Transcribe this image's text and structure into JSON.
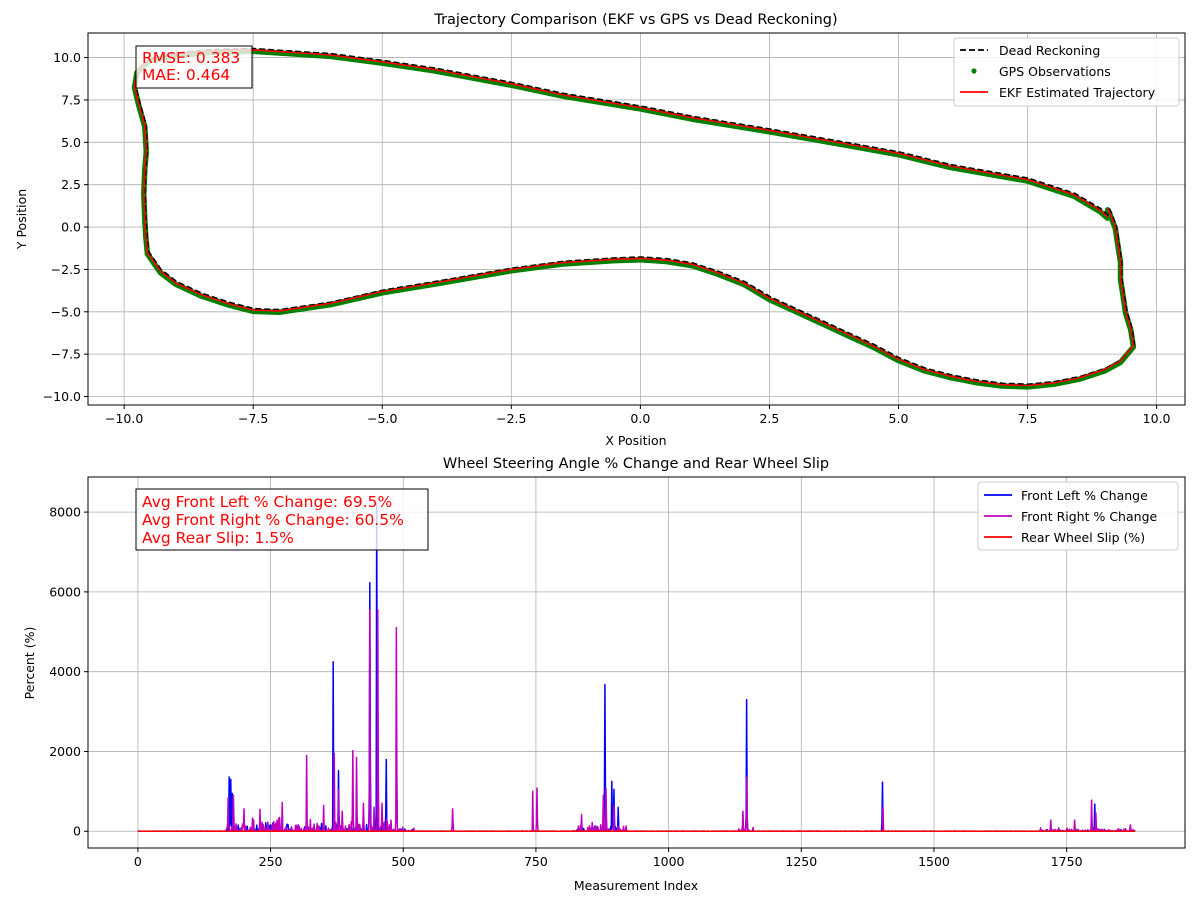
{
  "chart_data": [
    {
      "type": "line",
      "title": "Trajectory Comparison (EKF vs GPS vs Dead Reckoning)",
      "xlabel": "X Position",
      "ylabel": "Y Position",
      "xlim": [
        -10.7,
        10.55
      ],
      "ylim": [
        -10.5,
        11.45
      ],
      "xticks": [
        -10.0,
        -7.5,
        -5.0,
        -2.5,
        0.0,
        2.5,
        5.0,
        7.5,
        10.0
      ],
      "yticks": [
        -10.0,
        -7.5,
        -5.0,
        -2.5,
        0.0,
        2.5,
        5.0,
        7.5,
        10.0
      ],
      "grid": true,
      "legend_position": "top-right",
      "annotation": [
        "RMSE: 0.383",
        "MAE: 0.464"
      ],
      "path": [
        [
          9.05,
          0.6
        ],
        [
          8.9,
          1.0
        ],
        [
          8.4,
          1.9
        ],
        [
          7.5,
          2.8
        ],
        [
          6.0,
          3.6
        ],
        [
          5.0,
          4.35
        ],
        [
          4.0,
          4.9
        ],
        [
          2.5,
          5.7
        ],
        [
          1.0,
          6.45
        ],
        [
          0.0,
          7.05
        ],
        [
          -1.5,
          7.8
        ],
        [
          -2.5,
          8.45
        ],
        [
          -4.0,
          9.3
        ],
        [
          -5.0,
          9.75
        ],
        [
          -6.0,
          10.15
        ],
        [
          -7.0,
          10.35
        ],
        [
          -7.5,
          10.45
        ],
        [
          -8.3,
          10.4
        ],
        [
          -9.0,
          10.2
        ],
        [
          -9.5,
          9.9
        ],
        [
          -9.75,
          9.2
        ],
        [
          -9.8,
          8.3
        ],
        [
          -9.72,
          7.3
        ],
        [
          -9.6,
          6.0
        ],
        [
          -9.57,
          4.5
        ],
        [
          -9.6,
          3.5
        ],
        [
          -9.62,
          2.0
        ],
        [
          -9.6,
          0.5
        ],
        [
          -9.58,
          -0.5
        ],
        [
          -9.55,
          -1.5
        ],
        [
          -9.3,
          -2.6
        ],
        [
          -9.0,
          -3.3
        ],
        [
          -8.5,
          -4.0
        ],
        [
          -8.0,
          -4.5
        ],
        [
          -7.5,
          -4.9
        ],
        [
          -7.0,
          -4.95
        ],
        [
          -6.0,
          -4.5
        ],
        [
          -5.0,
          -3.8
        ],
        [
          -4.0,
          -3.3
        ],
        [
          -2.5,
          -2.5
        ],
        [
          -1.5,
          -2.1
        ],
        [
          -0.5,
          -1.9
        ],
        [
          0.0,
          -1.85
        ],
        [
          0.5,
          -1.95
        ],
        [
          1.0,
          -2.2
        ],
        [
          1.5,
          -2.7
        ],
        [
          2.0,
          -3.3
        ],
        [
          2.5,
          -4.2
        ],
        [
          3.0,
          -4.9
        ],
        [
          3.5,
          -5.6
        ],
        [
          4.0,
          -6.3
        ],
        [
          4.5,
          -7.0
        ],
        [
          5.0,
          -7.8
        ],
        [
          5.5,
          -8.4
        ],
        [
          6.0,
          -8.8
        ],
        [
          6.5,
          -9.1
        ],
        [
          7.0,
          -9.3
        ],
        [
          7.5,
          -9.35
        ],
        [
          8.0,
          -9.2
        ],
        [
          8.5,
          -8.9
        ],
        [
          9.0,
          -8.4
        ],
        [
          9.3,
          -7.9
        ],
        [
          9.55,
          -7.0
        ],
        [
          9.5,
          -6.0
        ],
        [
          9.4,
          -5.0
        ],
        [
          9.35,
          -4.0
        ],
        [
          9.3,
          -3.0
        ],
        [
          9.3,
          -2.0
        ],
        [
          9.25,
          -1.0
        ],
        [
          9.2,
          0.0
        ],
        [
          9.1,
          0.8
        ],
        [
          9.05,
          1.1
        ]
      ],
      "series": [
        {
          "name": "Dead Reckoning",
          "color": "#000000",
          "style": "dashed",
          "offset": [
            0.02,
            0.08
          ]
        },
        {
          "name": "GPS Observations",
          "color": "#008000",
          "style": "dots",
          "offset": [
            0.0,
            -0.08
          ]
        },
        {
          "name": "EKF Estimated Trajectory",
          "color": "#ff0000",
          "style": "solid",
          "offset": [
            0.0,
            0.0
          ]
        }
      ]
    },
    {
      "type": "line",
      "title": "Wheel Steering Angle % Change and Rear Wheel Slip",
      "xlabel": "Measurement Index",
      "ylabel": "Percent (%)",
      "xlim": [
        -94,
        1973
      ],
      "ylim": [
        -420,
        8880
      ],
      "xticks": [
        0,
        250,
        500,
        750,
        1000,
        1250,
        1500,
        1750
      ],
      "yticks": [
        0,
        2000,
        4000,
        6000,
        8000
      ],
      "grid": true,
      "legend_position": "top-right",
      "annotation": [
        "Avg Front Left % Change: 69.5%",
        "Avg Front Right % Change: 60.5%",
        "Avg Rear Slip: 1.5%"
      ],
      "n_points": 1880,
      "noise_bands": [
        [
          165,
          480,
          250
        ],
        [
          480,
          520,
          80
        ],
        [
          820,
          920,
          150
        ],
        [
          1130,
          1160,
          60
        ],
        [
          1700,
          1880,
          60
        ]
      ],
      "series": [
        {
          "name": "Front Left % Change",
          "color": "#0000ff",
          "spikes": [
            [
              172,
              1360
            ],
            [
              175,
              1300
            ],
            [
              178,
              950
            ],
            [
              368,
              4250
            ],
            [
              378,
              1520
            ],
            [
              437,
              6230
            ],
            [
              450,
              8200
            ],
            [
              468,
              1800
            ],
            [
              880,
              3680
            ],
            [
              893,
              1250
            ],
            [
              897,
              1050
            ],
            [
              905,
              600
            ],
            [
              1147,
              3300
            ],
            [
              1403,
              1230
            ],
            [
              1803,
              680
            ]
          ]
        },
        {
          "name": "Front Right % Change",
          "color": "#bf00bf",
          "spikes": [
            [
              170,
              830
            ],
            [
              180,
              900
            ],
            [
              200,
              560
            ],
            [
              230,
              550
            ],
            [
              272,
              720
            ],
            [
              318,
              1900
            ],
            [
              350,
              650
            ],
            [
              370,
              1950
            ],
            [
              378,
              1050
            ],
            [
              385,
              500
            ],
            [
              405,
              2020
            ],
            [
              412,
              1850
            ],
            [
              425,
              700
            ],
            [
              437,
              5550
            ],
            [
              445,
              600
            ],
            [
              452,
              5550
            ],
            [
              460,
              700
            ],
            [
              487,
              5100
            ],
            [
              593,
              560
            ],
            [
              744,
              1000
            ],
            [
              752,
              1080
            ],
            [
              836,
              420
            ],
            [
              877,
              900
            ],
            [
              882,
              1070
            ],
            [
              897,
              650
            ],
            [
              1140,
              500
            ],
            [
              1147,
              1350
            ],
            [
              1404,
              600
            ],
            [
              1720,
              280
            ],
            [
              1765,
              280
            ],
            [
              1797,
              780
            ],
            [
              1805,
              460
            ],
            [
              1870,
              160
            ]
          ]
        },
        {
          "name": "Rear Wheel Slip (%)",
          "color": "#ff0000",
          "spikes": []
        }
      ]
    }
  ]
}
